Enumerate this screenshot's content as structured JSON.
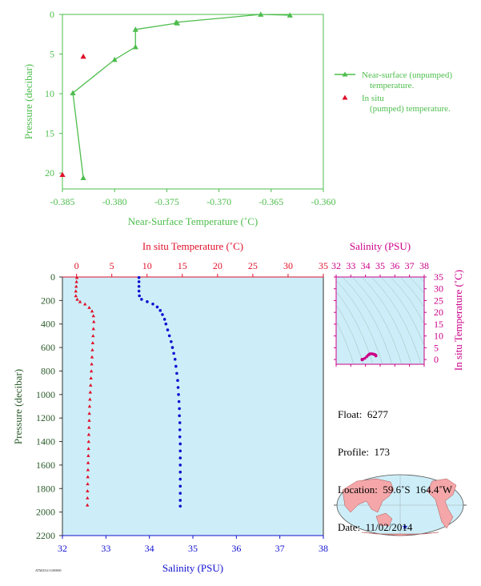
{
  "chart_data": [
    {
      "type": "line",
      "xlabel": "Near-Surface Temperature (˚C)",
      "ylabel": "Pressure (decibar)",
      "xlim": [
        -0.385,
        -0.36
      ],
      "ylim": [
        22,
        0
      ],
      "x_ticks": [
        "-0.385",
        "-0.380",
        "-0.375",
        "-0.370",
        "-0.365",
        "-0.360"
      ],
      "y_ticks": [
        "0",
        "5",
        "10",
        "15",
        "20"
      ],
      "legend_position": "right",
      "series": [
        {
          "name": "Near-surface (unpumped) temperature.",
          "color": "#4dbd4d",
          "marker": "triangle",
          "points": [
            [
              -0.3632,
              0.1
            ],
            [
              -0.366,
              0.0
            ],
            [
              -0.3741,
              1.0
            ],
            [
              -0.374,
              1.1
            ],
            [
              -0.378,
              1.9
            ],
            [
              -0.378,
              4.1
            ],
            [
              -0.38,
              5.7
            ],
            [
              -0.384,
              9.9
            ],
            [
              -0.383,
              20.6
            ]
          ]
        },
        {
          "name": "In situ (pumped) temperature.",
          "color": "#e0102a",
          "marker": "triangle",
          "points": [
            [
              -0.383,
              5.3
            ],
            [
              -0.385,
              20.2
            ]
          ]
        }
      ]
    },
    {
      "type": "line",
      "ylabel": "Pressure (decibar)",
      "ylim": [
        2200,
        0
      ],
      "y_ticks": [
        "0",
        "200",
        "400",
        "600",
        "800",
        "1000",
        "1200",
        "1400",
        "1600",
        "1800",
        "2000",
        "2200"
      ],
      "top_axis": {
        "label": "In situ Temperature (˚C)",
        "range": [
          -2,
          35
        ],
        "ticks": [
          "0",
          "5",
          "10",
          "15",
          "20",
          "25",
          "30",
          "35"
        ],
        "color": "#e0102a"
      },
      "bottom_axis": {
        "label": "Salinity (PSU)",
        "range": [
          32,
          38
        ],
        "ticks": [
          "32",
          "33",
          "34",
          "35",
          "36",
          "37",
          "38"
        ],
        "color": "#1010d0"
      },
      "background": "#cdeef8",
      "series": [
        {
          "name": "Temperature",
          "axis": "top",
          "color": "#e0102a",
          "marker": "triangle",
          "points": [
            [
              0.05,
              5
            ],
            [
              0.0,
              40
            ],
            [
              -0.05,
              80
            ],
            [
              -0.1,
              120
            ],
            [
              -0.1,
              160
            ],
            [
              0.1,
              190
            ],
            [
              0.5,
              210
            ],
            [
              1.2,
              230
            ],
            [
              1.8,
              260
            ],
            [
              2.2,
              290
            ],
            [
              2.4,
              330
            ],
            [
              2.45,
              380
            ],
            [
              2.4,
              440
            ],
            [
              2.35,
              500
            ],
            [
              2.3,
              560
            ],
            [
              2.25,
              620
            ],
            [
              2.2,
              680
            ],
            [
              2.15,
              740
            ],
            [
              2.1,
              800
            ],
            [
              2.05,
              860
            ],
            [
              2.0,
              920
            ],
            [
              1.95,
              980
            ],
            [
              1.9,
              1040
            ],
            [
              1.85,
              1100
            ],
            [
              1.82,
              1160
            ],
            [
              1.8,
              1220
            ],
            [
              1.77,
              1280
            ],
            [
              1.74,
              1340
            ],
            [
              1.72,
              1400
            ],
            [
              1.7,
              1460
            ],
            [
              1.67,
              1520
            ],
            [
              1.64,
              1580
            ],
            [
              1.62,
              1640
            ],
            [
              1.6,
              1700
            ],
            [
              1.58,
              1760
            ],
            [
              1.56,
              1820
            ],
            [
              1.55,
              1880
            ],
            [
              1.54,
              1940
            ]
          ]
        },
        {
          "name": "Salinity",
          "axis": "bottom",
          "color": "#1010d0",
          "marker": "dot",
          "points": [
            [
              33.76,
              5
            ],
            [
              33.76,
              40
            ],
            [
              33.76,
              80
            ],
            [
              33.76,
              120
            ],
            [
              33.77,
              160
            ],
            [
              33.82,
              190
            ],
            [
              33.95,
              210
            ],
            [
              34.08,
              230
            ],
            [
              34.18,
              255
            ],
            [
              34.25,
              285
            ],
            [
              34.3,
              320
            ],
            [
              34.35,
              360
            ],
            [
              34.38,
              400
            ],
            [
              34.42,
              450
            ],
            [
              34.46,
              500
            ],
            [
              34.5,
              550
            ],
            [
              34.53,
              600
            ],
            [
              34.56,
              650
            ],
            [
              34.59,
              700
            ],
            [
              34.61,
              760
            ],
            [
              34.63,
              820
            ],
            [
              34.65,
              880
            ],
            [
              34.66,
              940
            ],
            [
              34.67,
              1000
            ],
            [
              34.68,
              1060
            ],
            [
              34.69,
              1120
            ],
            [
              34.69,
              1180
            ],
            [
              34.7,
              1240
            ],
            [
              34.7,
              1300
            ],
            [
              34.7,
              1360
            ],
            [
              34.71,
              1420
            ],
            [
              34.71,
              1480
            ],
            [
              34.71,
              1540
            ],
            [
              34.71,
              1600
            ],
            [
              34.71,
              1660
            ],
            [
              34.71,
              1720
            ],
            [
              34.71,
              1780
            ],
            [
              34.71,
              1840
            ],
            [
              34.71,
              1900
            ],
            [
              34.71,
              1950
            ]
          ]
        }
      ]
    },
    {
      "type": "scatter",
      "title": "Salinity (PSU)",
      "ylabel": "In situ Temperature (˚C)",
      "xlim": [
        32,
        38
      ],
      "ylim": [
        -2,
        35
      ],
      "x_ticks": [
        "32",
        "33",
        "34",
        "35",
        "36",
        "37",
        "38"
      ],
      "y_ticks": [
        "0",
        "5",
        "10",
        "15",
        "20",
        "25",
        "30",
        "35"
      ],
      "color": "#cc0088",
      "background": "#cdeef8",
      "points": [
        [
          33.76,
          0.05
        ],
        [
          33.77,
          -0.1
        ],
        [
          33.82,
          0.1
        ],
        [
          33.95,
          0.5
        ],
        [
          34.08,
          1.2
        ],
        [
          34.18,
          1.8
        ],
        [
          34.25,
          2.2
        ],
        [
          34.3,
          2.4
        ],
        [
          34.38,
          2.45
        ],
        [
          34.46,
          2.4
        ],
        [
          34.53,
          2.3
        ],
        [
          34.59,
          2.2
        ],
        [
          34.63,
          2.1
        ],
        [
          34.66,
          2.0
        ],
        [
          34.68,
          1.9
        ],
        [
          34.7,
          1.8
        ],
        [
          34.71,
          1.7
        ],
        [
          34.71,
          1.6
        ],
        [
          34.71,
          1.55
        ]
      ]
    }
  ],
  "float_info": {
    "float": "Float:  6277",
    "profile": "Profile:  173",
    "location": "Location:  59.6˚S  164.4˚W",
    "date": "Date:  11/02/2014"
  },
  "map": {
    "ocean_color": "#cdeef8",
    "land_color": "#f4a6a8",
    "marker": "star",
    "marker_color": "#1010d0"
  },
  "footer_code": "ATM2014 0.000000"
}
